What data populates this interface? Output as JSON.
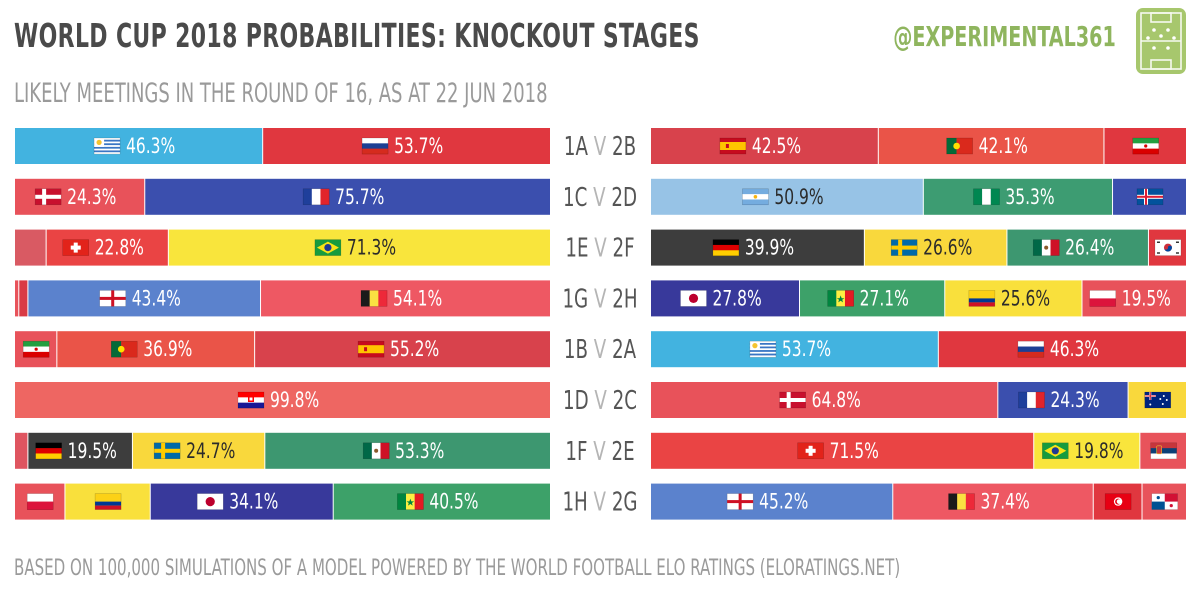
{
  "header": {
    "title": "WORLD CUP 2018 PROBABILITIES: KNOCKOUT STAGES",
    "subtitle": "LIKELY MEETINGS IN THE ROUND OF 16, AS AT 22 JUN 2018",
    "handle": "@EXPERIMENTAL361"
  },
  "footer": {
    "note": "BASED ON 100,000 SIMULATIONS OF A MODEL POWERED BY THE WORLD FOOTBALL ELO RATINGS (ELORATINGS.NET)"
  },
  "colors": {
    "background": "#ffffff",
    "title": "#4a4a4a",
    "muted": "#9a9a9a",
    "handle": "#8fb55e",
    "logo": "#a7c76d"
  },
  "chart_data": {
    "type": "bar",
    "subtype": "stacked-100-percent-horizontal",
    "note": "Each bar shows the probability of the named opponent meeting a group position in the round of 16; small segments are unlabelled.",
    "rows": [
      {
        "left": "1A",
        "vs": "V",
        "right": "2B",
        "side": "left",
        "segments": [
          {
            "team": "Uruguay",
            "value": 46.3,
            "label": "46.3%",
            "color": "#42b3e0",
            "flag": "uruguay"
          },
          {
            "team": "Russia",
            "value": 53.7,
            "label": "53.7%",
            "color": "#e0373f",
            "flag": "russia"
          }
        ]
      },
      {
        "left": "1C",
        "vs": "V",
        "right": "2D",
        "side": "left",
        "segments": [
          {
            "team": "Denmark",
            "value": 24.3,
            "label": "24.3%",
            "color": "#e8525a",
            "flag": "denmark"
          },
          {
            "team": "France",
            "value": 75.7,
            "label": "75.7%",
            "color": "#3b4fae",
            "flag": "france"
          }
        ]
      },
      {
        "left": "1E",
        "vs": "V",
        "right": "2F",
        "side": "left",
        "segments": [
          {
            "team": "Serbia",
            "value": 5.9,
            "label": "",
            "color": "#d95a63",
            "flag": ""
          },
          {
            "team": "Switzerland",
            "value": 22.8,
            "label": "22.8%",
            "color": "#ea4444",
            "flag": "switzerland"
          },
          {
            "team": "Brazil",
            "value": 71.3,
            "label": "71.3%",
            "color": "#f9e53c",
            "flag": "brazil"
          }
        ]
      },
      {
        "left": "1G",
        "vs": "V",
        "right": "2H",
        "side": "left",
        "segments": [
          {
            "team": "Panama",
            "value": 0.8,
            "label": "",
            "color": "#e8535b",
            "flag": ""
          },
          {
            "team": "Tunisia",
            "value": 1.7,
            "label": "",
            "color": "#d93a44",
            "flag": ""
          },
          {
            "team": "England",
            "value": 43.4,
            "label": "43.4%",
            "color": "#5b82cd",
            "flag": "england"
          },
          {
            "team": "Belgium",
            "value": 54.1,
            "label": "54.1%",
            "color": "#ee5863",
            "flag": "belgium"
          }
        ]
      },
      {
        "left": "1B",
        "vs": "V",
        "right": "2A",
        "side": "right",
        "segments": [
          {
            "team": "Uruguay",
            "value": 53.7,
            "label": "53.7%",
            "color": "#42b3e0",
            "flag": "uruguay"
          },
          {
            "team": "Russia",
            "value": 46.3,
            "label": "46.3%",
            "color": "#e0373f",
            "flag": "russia"
          }
        ]
      },
      {
        "left": "1B",
        "vs": "V",
        "right": "2A",
        "side": "left",
        "segments": [
          {
            "team": "Iran",
            "value": 7.9,
            "label": "",
            "color": "#e8525a",
            "flag": "iran"
          },
          {
            "team": "Portugal",
            "value": 36.9,
            "label": "36.9%",
            "color": "#ea5448",
            "flag": "portugal"
          },
          {
            "team": "Spain",
            "value": 55.2,
            "label": "55.2%",
            "color": "#d8424c",
            "flag": "spain"
          }
        ]
      },
      {
        "left": "1D",
        "vs": "V",
        "right": "2C",
        "side": "left",
        "segments": [
          {
            "team": "Croatia",
            "value": 99.8,
            "label": "99.8%",
            "color": "#ee6662",
            "flag": "croatia"
          }
        ]
      },
      {
        "left": "1F",
        "vs": "V",
        "right": "2E",
        "side": "left",
        "segments": [
          {
            "team": "South Korea",
            "value": 2.5,
            "label": "",
            "color": "#df5560",
            "flag": ""
          },
          {
            "team": "Germany",
            "value": 19.5,
            "label": "19.5%",
            "color": "#3d3d3d",
            "flag": "germany"
          },
          {
            "team": "Sweden",
            "value": 24.7,
            "label": "24.7%",
            "color": "#f9d83c",
            "flag": "sweden"
          },
          {
            "team": "Mexico",
            "value": 53.3,
            "label": "53.3%",
            "color": "#3d9770",
            "flag": "mexico"
          }
        ]
      },
      {
        "left": "1H",
        "vs": "V",
        "right": "2G",
        "side": "left",
        "segments": [
          {
            "team": "Poland",
            "value": 9.4,
            "label": "",
            "color": "#e8525a",
            "flag": "poland"
          },
          {
            "team": "Colombia",
            "value": 15.9,
            "label": "",
            "color": "#f9e03c",
            "flag": "colombia"
          },
          {
            "team": "Japan",
            "value": 34.1,
            "label": "34.1%",
            "color": "#38399b",
            "flag": "japan"
          },
          {
            "team": "Senegal",
            "value": 40.5,
            "label": "40.5%",
            "color": "#3da169",
            "flag": "senegal"
          }
        ]
      }
    ],
    "left_bars": [
      {
        "matchup": "1A V 2B",
        "segments": [
          {
            "team": "Uruguay",
            "value": 46.3,
            "label": "46.3%",
            "color": "#42b3e0",
            "flag": "uruguay"
          },
          {
            "team": "Russia",
            "value": 53.7,
            "label": "53.7%",
            "color": "#e0373f",
            "flag": "russia"
          }
        ]
      },
      {
        "matchup": "1C V 2D",
        "segments": [
          {
            "team": "Denmark",
            "value": 24.3,
            "label": "24.3%",
            "color": "#e8525a",
            "flag": "denmark"
          },
          {
            "team": "France",
            "value": 75.7,
            "label": "75.7%",
            "color": "#3b4fae",
            "flag": "france"
          }
        ]
      },
      {
        "matchup": "1E V 2F",
        "segments": [
          {
            "team": "Serbia",
            "value": 5.9,
            "label": "",
            "color": "#d95a63",
            "flag": ""
          },
          {
            "team": "Switzerland",
            "value": 22.8,
            "label": "22.8%",
            "color": "#ea4444",
            "flag": "switzerland"
          },
          {
            "team": "Brazil",
            "value": 71.3,
            "label": "71.3%",
            "color": "#f9e53c",
            "flag": "brazil"
          }
        ]
      },
      {
        "matchup": "1G V 2H",
        "segments": [
          {
            "team": "Panama",
            "value": 0.8,
            "label": "",
            "color": "#e8535b",
            "flag": ""
          },
          {
            "team": "Tunisia",
            "value": 1.7,
            "label": "",
            "color": "#d93a44",
            "flag": ""
          },
          {
            "team": "England",
            "value": 43.4,
            "label": "43.4%",
            "color": "#5b82cd",
            "flag": "england"
          },
          {
            "team": "Belgium",
            "value": 54.1,
            "label": "54.1%",
            "color": "#ee5863",
            "flag": "belgium"
          }
        ]
      },
      {
        "matchup": "1B V 2A",
        "segments": [
          {
            "team": "Iran",
            "value": 7.9,
            "label": "",
            "color": "#e8525a",
            "flag": "iran"
          },
          {
            "team": "Portugal",
            "value": 36.9,
            "label": "36.9%",
            "color": "#ea5448",
            "flag": "portugal"
          },
          {
            "team": "Spain",
            "value": 55.2,
            "label": "55.2%",
            "color": "#d8424c",
            "flag": "spain"
          }
        ]
      },
      {
        "matchup": "1D V 2C",
        "segments": [
          {
            "team": "Croatia",
            "value": 99.8,
            "label": "99.8%",
            "color": "#ee6662",
            "flag": "croatia"
          }
        ]
      },
      {
        "matchup": "1F V 2E",
        "segments": [
          {
            "team": "South Korea",
            "value": 2.5,
            "label": "",
            "color": "#df5560",
            "flag": ""
          },
          {
            "team": "Germany",
            "value": 19.5,
            "label": "19.5%",
            "color": "#3d3d3d",
            "flag": "germany"
          },
          {
            "team": "Sweden",
            "value": 24.7,
            "label": "24.7%",
            "color": "#f9d83c",
            "flag": "sweden"
          },
          {
            "team": "Mexico",
            "value": 53.3,
            "label": "53.3%",
            "color": "#3d9770",
            "flag": "mexico"
          }
        ]
      },
      {
        "matchup": "1H V 2G",
        "segments": [
          {
            "team": "Poland",
            "value": 9.4,
            "label": "",
            "color": "#e8525a",
            "flag": "poland"
          },
          {
            "team": "Colombia",
            "value": 15.9,
            "label": "",
            "color": "#f9e03c",
            "flag": "colombia"
          },
          {
            "team": "Japan",
            "value": 34.1,
            "label": "34.1%",
            "color": "#38399b",
            "flag": "japan"
          },
          {
            "team": "Senegal",
            "value": 40.5,
            "label": "40.5%",
            "color": "#3da169",
            "flag": "senegal"
          }
        ]
      }
    ],
    "right_bars": [
      {
        "matchup": "1A V 2B",
        "segments": [
          {
            "team": "Spain",
            "value": 42.5,
            "label": "42.5%",
            "color": "#d8424c",
            "flag": "spain"
          },
          {
            "team": "Portugal",
            "value": 42.1,
            "label": "42.1%",
            "color": "#ea5448",
            "flag": "portugal"
          },
          {
            "team": "Iran",
            "value": 15.4,
            "label": "",
            "color": "#e0373f",
            "flag": "iran"
          }
        ]
      },
      {
        "matchup": "1C V 2D",
        "segments": [
          {
            "team": "Argentina",
            "value": 50.9,
            "label": "50.9%",
            "color": "#97c3e6",
            "flag": "argentina"
          },
          {
            "team": "Nigeria",
            "value": 35.3,
            "label": "35.3%",
            "color": "#3d9c72",
            "flag": "nigeria"
          },
          {
            "team": "Iceland",
            "value": 13.8,
            "label": "",
            "color": "#3b4fae",
            "flag": "iceland"
          }
        ]
      },
      {
        "matchup": "1E V 2F",
        "segments": [
          {
            "team": "Germany",
            "value": 39.9,
            "label": "39.9%",
            "color": "#3d3d3d",
            "flag": "germany"
          },
          {
            "team": "Sweden",
            "value": 26.6,
            "label": "26.6%",
            "color": "#f9d83c",
            "flag": "sweden"
          },
          {
            "team": "Mexico",
            "value": 26.4,
            "label": "26.4%",
            "color": "#3d9770",
            "flag": "mexico"
          },
          {
            "team": "South Korea",
            "value": 7.1,
            "label": "",
            "color": "#e0373f",
            "flag": "southkorea"
          }
        ]
      },
      {
        "matchup": "1G V 2H",
        "segments": [
          {
            "team": "Japan",
            "value": 27.8,
            "label": "27.8%",
            "color": "#38399b",
            "flag": "japan"
          },
          {
            "team": "Senegal",
            "value": 27.1,
            "label": "27.1%",
            "color": "#3da169",
            "flag": "senegal"
          },
          {
            "team": "Colombia",
            "value": 25.6,
            "label": "25.6%",
            "color": "#f9e03c",
            "flag": "colombia"
          },
          {
            "team": "Poland",
            "value": 19.5,
            "label": "19.5%",
            "color": "#e8525a",
            "flag": "poland"
          }
        ]
      },
      {
        "matchup": "1B V 2A",
        "segments": [
          {
            "team": "Uruguay",
            "value": 53.7,
            "label": "53.7%",
            "color": "#42b3e0",
            "flag": "uruguay"
          },
          {
            "team": "Russia",
            "value": 46.3,
            "label": "46.3%",
            "color": "#e0373f",
            "flag": "russia"
          }
        ]
      },
      {
        "matchup": "1D V 2C",
        "segments": [
          {
            "team": "Denmark",
            "value": 64.8,
            "label": "64.8%",
            "color": "#e8525a",
            "flag": "denmark"
          },
          {
            "team": "France",
            "value": 24.3,
            "label": "24.3%",
            "color": "#3b4fae",
            "flag": "france"
          },
          {
            "team": "Australia",
            "value": 10.9,
            "label": "",
            "color": "#f9d83c",
            "flag": "australia"
          }
        ]
      },
      {
        "matchup": "1F V 2E",
        "segments": [
          {
            "team": "Switzerland",
            "value": 71.5,
            "label": "71.5%",
            "color": "#ea4444",
            "flag": "switzerland"
          },
          {
            "team": "Brazil",
            "value": 19.8,
            "label": "19.8%",
            "color": "#f9e53c",
            "flag": "brazil"
          },
          {
            "team": "Serbia",
            "value": 8.7,
            "label": "",
            "color": "#e8535b",
            "flag": "serbia"
          }
        ]
      },
      {
        "matchup": "1H V 2G",
        "segments": [
          {
            "team": "England",
            "value": 45.2,
            "label": "45.2%",
            "color": "#5b82cd",
            "flag": "england"
          },
          {
            "team": "Belgium",
            "value": 37.4,
            "label": "37.4%",
            "color": "#ee5863",
            "flag": "belgium"
          },
          {
            "team": "Tunisia",
            "value": 9.1,
            "label": "",
            "color": "#e0373f",
            "flag": "tunisia"
          },
          {
            "team": "Panama",
            "value": 8.3,
            "label": "",
            "color": "#e8535b",
            "flag": "panama"
          }
        ]
      }
    ],
    "matchups": [
      {
        "first": "1A",
        "vs": "V",
        "second": "2B"
      },
      {
        "first": "1C",
        "vs": "V",
        "second": "2D"
      },
      {
        "first": "1E",
        "vs": "V",
        "second": "2F"
      },
      {
        "first": "1G",
        "vs": "V",
        "second": "2H"
      },
      {
        "first": "1B",
        "vs": "V",
        "second": "2A"
      },
      {
        "first": "1D",
        "vs": "V",
        "second": "2C"
      },
      {
        "first": "1F",
        "vs": "V",
        "second": "2E"
      },
      {
        "first": "1H",
        "vs": "V",
        "second": "2G"
      }
    ],
    "xlim": [
      0,
      100
    ],
    "units": "%"
  }
}
